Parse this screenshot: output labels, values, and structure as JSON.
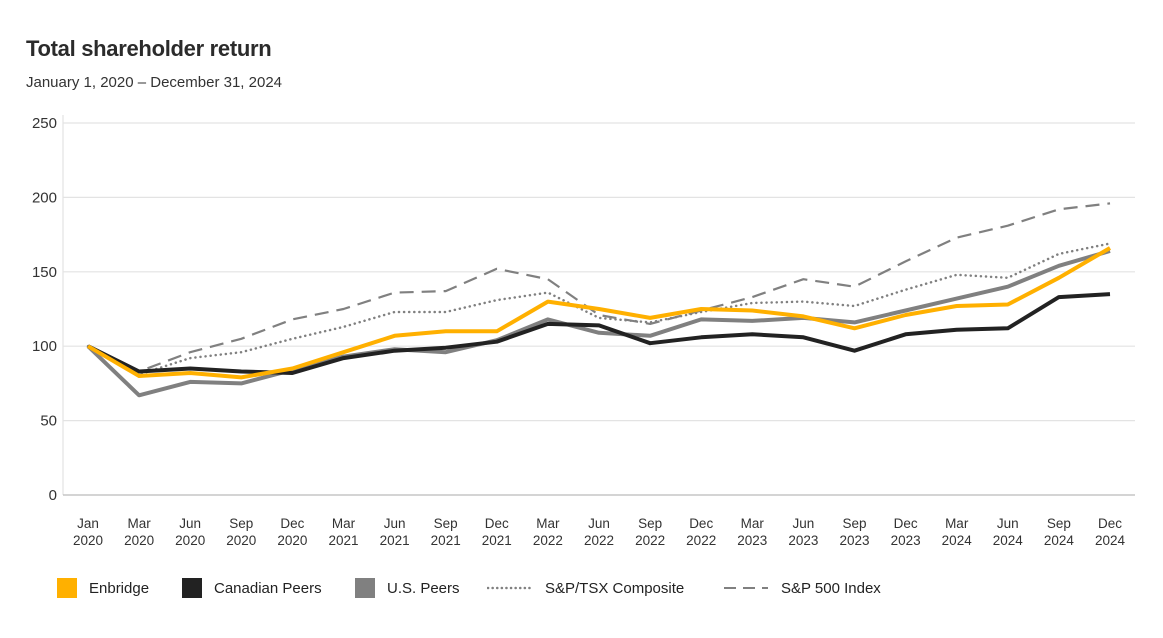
{
  "chart_data": {
    "type": "line",
    "title": "Total shareholder return",
    "subtitle": "January 1, 2020 – December 31, 2024",
    "xlabel": "",
    "ylabel": "",
    "ylim": [
      0,
      250
    ],
    "yticks": [
      0,
      50,
      100,
      150,
      200,
      250
    ],
    "grid": true,
    "legend_position": "bottom",
    "categories": [
      [
        "Jan",
        "2020"
      ],
      [
        "Mar",
        "2020"
      ],
      [
        "Jun",
        "2020"
      ],
      [
        "Sep",
        "2020"
      ],
      [
        "Dec",
        "2020"
      ],
      [
        "Mar",
        "2021"
      ],
      [
        "Jun",
        "2021"
      ],
      [
        "Sep",
        "2021"
      ],
      [
        "Dec",
        "2021"
      ],
      [
        "Mar",
        "2022"
      ],
      [
        "Jun",
        "2022"
      ],
      [
        "Sep",
        "2022"
      ],
      [
        "Dec",
        "2022"
      ],
      [
        "Mar",
        "2023"
      ],
      [
        "Jun",
        "2023"
      ],
      [
        "Sep",
        "2023"
      ],
      [
        "Dec",
        "2023"
      ],
      [
        "Mar",
        "2024"
      ],
      [
        "Jun",
        "2024"
      ],
      [
        "Sep",
        "2024"
      ],
      [
        "Dec",
        "2024"
      ]
    ],
    "series": [
      {
        "name": "Enbridge",
        "color": "#FFB000",
        "style": "solid",
        "values": [
          100,
          80,
          82,
          79,
          85,
          96,
          107,
          110,
          110,
          130,
          125,
          119,
          125,
          124,
          120,
          112,
          121,
          127,
          128,
          146,
          166
        ]
      },
      {
        "name": "Canadian Peers",
        "color": "#222222",
        "style": "solid",
        "values": [
          100,
          83,
          85,
          83,
          82,
          92,
          97,
          99,
          103,
          115,
          114,
          102,
          106,
          108,
          106,
          97,
          108,
          111,
          112,
          133,
          135
        ]
      },
      {
        "name": "U.S. Peers",
        "color": "#808080",
        "style": "solid",
        "values": [
          100,
          67,
          76,
          75,
          84,
          93,
          98,
          96,
          104,
          118,
          109,
          107,
          118,
          117,
          119,
          116,
          124,
          132,
          140,
          154,
          164
        ]
      },
      {
        "name": "S&P/TSX Composite",
        "color": "#808080",
        "style": "dotted",
        "values": [
          100,
          81,
          92,
          96,
          105,
          113,
          123,
          123,
          131,
          136,
          119,
          116,
          123,
          129,
          130,
          127,
          138,
          148,
          146,
          162,
          169
        ]
      },
      {
        "name": "S&P 500 Index",
        "color": "#808080",
        "style": "dashed",
        "values": [
          100,
          83,
          96,
          105,
          118,
          125,
          136,
          137,
          152,
          145,
          121,
          115,
          124,
          133,
          145,
          140,
          157,
          173,
          181,
          192,
          196
        ]
      }
    ]
  }
}
